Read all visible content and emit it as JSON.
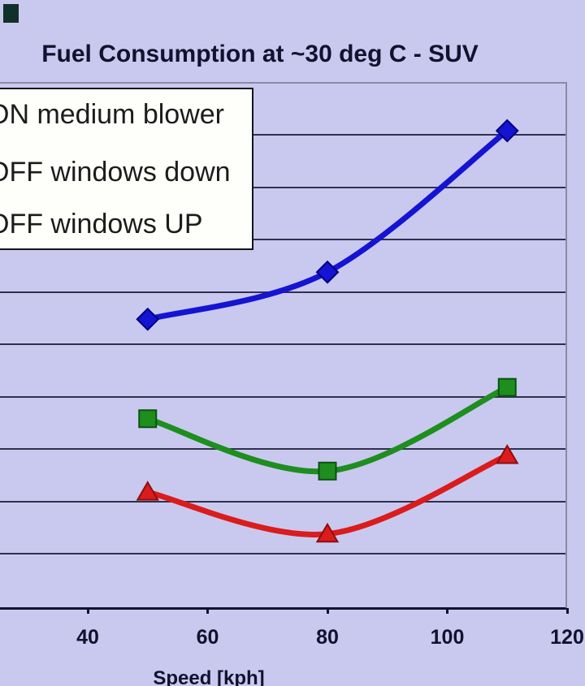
{
  "title": "Fuel Consumption at ~30 deg C - SUV",
  "legend": {
    "items": [
      {
        "label": "ON medium blower"
      },
      {
        "label": "OFF windows down"
      },
      {
        "label": "OFF windows UP"
      }
    ]
  },
  "x_axis": {
    "label": "Speed [kph]",
    "tick_labels": [
      "40",
      "60",
      "80",
      "100",
      "120"
    ]
  },
  "chart_data": {
    "type": "line",
    "title": "Fuel Consumption at ~30 deg C - SUV",
    "xlabel": "Speed [kph]",
    "ylabel": "",
    "x_ticks": [
      40,
      60,
      80,
      100,
      120
    ],
    "x": [
      50,
      80,
      110
    ],
    "grid": "horizontal gridlines, 10 divisions",
    "y_axis_note": "y-axis tick labels cropped off the left edge of the screenshot; values given in gridline divisions above the x-axis",
    "ylim_divisions": [
      0,
      10
    ],
    "legend_position": "top-left inside plot, cropped at left edge",
    "series": [
      {
        "name": "ON medium blower",
        "marker": "diamond",
        "color": "#1414d2",
        "edge": "#000080",
        "y_divisions": [
          5.5,
          6.4,
          9.1
        ]
      },
      {
        "name": "OFF windows down",
        "marker": "square",
        "color": "#1e8e1e",
        "edge": "#0a520f",
        "y_divisions": [
          3.6,
          2.6,
          4.2
        ]
      },
      {
        "name": "OFF windows UP",
        "marker": "triangle",
        "color": "#da1c1c",
        "edge": "#8f0e0e",
        "y_divisions": [
          2.2,
          1.4,
          2.9
        ]
      }
    ]
  },
  "colors": {
    "background": "#c9c9f0",
    "gridline": "#30304d",
    "plot_border": "#8a8aa3",
    "axis_line": "#12122e",
    "text": "#12122e",
    "legend_background": "#fefefb",
    "series_blue": "#1414d2",
    "series_green": "#1e8e1e",
    "series_red": "#da1c1c"
  }
}
